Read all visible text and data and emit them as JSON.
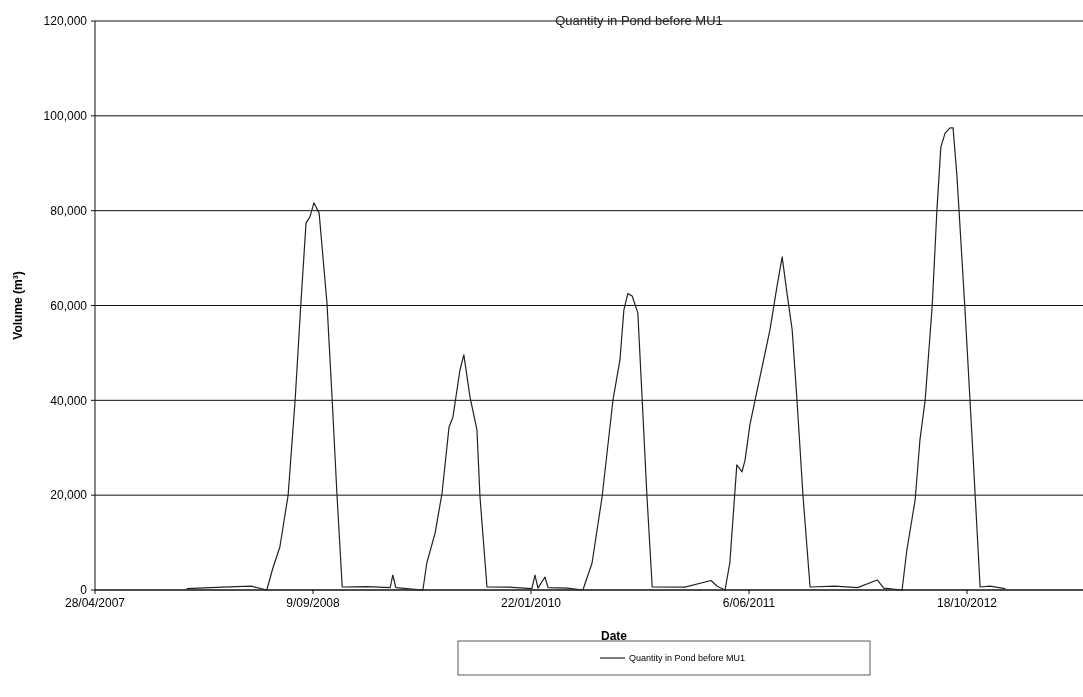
{
  "chart_data": {
    "type": "line",
    "title": "Quantity in Pond before MU1",
    "xlabel": "Date",
    "ylabel": "Volume (m³)",
    "xlim": [
      "2007-04-28",
      "2013-07-11"
    ],
    "xticks": [
      {
        "value": "2007-04-28",
        "label": "28/04/2007"
      },
      {
        "value": "2008-09-09",
        "label": "9/09/2008"
      },
      {
        "value": "2010-01-22",
        "label": "22/01/2010"
      },
      {
        "value": "2011-06-06",
        "label": "6/06/2011"
      },
      {
        "value": "2012-10-18",
        "label": "18/10/2012"
      }
    ],
    "ylim": [
      0,
      120000
    ],
    "yticks": [
      {
        "value": 0,
        "label": "0"
      },
      {
        "value": 20000,
        "label": "20,000"
      },
      {
        "value": 40000,
        "label": "40,000"
      },
      {
        "value": 60000,
        "label": "60,000"
      },
      {
        "value": 80000,
        "label": "80,000"
      },
      {
        "value": 100000,
        "label": "100,000"
      },
      {
        "value": 120000,
        "label": "120,000"
      }
    ],
    "grid": "y",
    "legend": "bottom",
    "marker": "none",
    "line_style": "solid",
    "x": [
      "2007-11-25",
      "2008-02-15",
      "2008-04-20",
      "2008-05-26",
      "2008-06-09",
      "2008-06-25",
      "2008-07-14",
      "2008-07-30",
      "2008-08-12",
      "2008-08-24",
      "2008-09-02",
      "2008-09-11",
      "2008-09-23",
      "2008-10-11",
      "2008-10-23",
      "2008-11-03",
      "2008-11-15",
      "2009-01-10",
      "2009-03-05",
      "2009-03-11",
      "2009-03-18",
      "2009-05-19",
      "2009-05-28",
      "2009-06-16",
      "2009-07-02",
      "2009-07-18",
      "2009-07-27",
      "2009-08-12",
      "2009-08-21",
      "2009-09-04",
      "2009-09-20",
      "2009-09-27",
      "2009-10-13",
      "2009-12-01",
      "2010-01-24",
      "2010-01-31",
      "2010-02-07",
      "2010-02-23",
      "2010-03-02",
      "2010-04-15",
      "2010-05-21",
      "2010-06-11",
      "2010-07-04",
      "2010-07-29",
      "2010-08-14",
      "2010-08-23",
      "2010-09-01",
      "2010-09-11",
      "2010-09-24",
      "2010-10-04",
      "2010-10-15",
      "2010-10-27",
      "2011-01-10",
      "2011-03-11",
      "2011-03-25",
      "2011-04-12",
      "2011-04-23",
      "2011-05-09",
      "2011-05-21",
      "2011-05-28",
      "2011-06-08",
      "2011-06-20",
      "2011-07-08",
      "2011-07-24",
      "2011-08-09",
      "2011-08-21",
      "2011-09-01",
      "2011-09-13",
      "2011-09-24",
      "2011-10-08",
      "2011-10-24",
      "2011-12-20",
      "2012-02-10",
      "2012-03-26",
      "2012-04-10",
      "2012-05-22",
      "2012-06-02",
      "2012-06-21",
      "2012-07-02",
      "2012-07-14",
      "2012-07-30",
      "2012-08-10",
      "2012-08-19",
      "2012-08-29",
      "2012-09-09",
      "2012-09-16",
      "2012-09-25",
      "2012-10-13",
      "2012-10-29",
      "2012-11-17",
      "2012-12-10",
      "2013-01-13"
    ],
    "series": [
      {
        "name": "Quantity in Pond before MU1",
        "color": "#222222",
        "values": [
          300,
          600,
          800,
          0,
          4640,
          9070,
          20040,
          40080,
          60130,
          77430,
          78700,
          81650,
          79530,
          60550,
          40080,
          20040,
          630,
          700,
          500,
          3160,
          500,
          0,
          5700,
          12000,
          20460,
          34390,
          36500,
          46400,
          49580,
          40720,
          33760,
          19620,
          630,
          600,
          300,
          3160,
          400,
          2740,
          500,
          400,
          0,
          5700,
          19620,
          40080,
          48520,
          59070,
          62500,
          62000,
          58440,
          40080,
          19620,
          630,
          600,
          2000,
          800,
          0,
          5700,
          26370,
          24900,
          27430,
          34810,
          40080,
          47890,
          54850,
          63920,
          70250,
          62660,
          54850,
          40080,
          19620,
          630,
          800,
          500,
          2110,
          400,
          0,
          8440,
          18990,
          31650,
          40080,
          59700,
          80170,
          93460,
          96410,
          97470,
          97470,
          87130,
          59700,
          33120,
          630,
          800,
          300
        ]
      }
    ]
  }
}
